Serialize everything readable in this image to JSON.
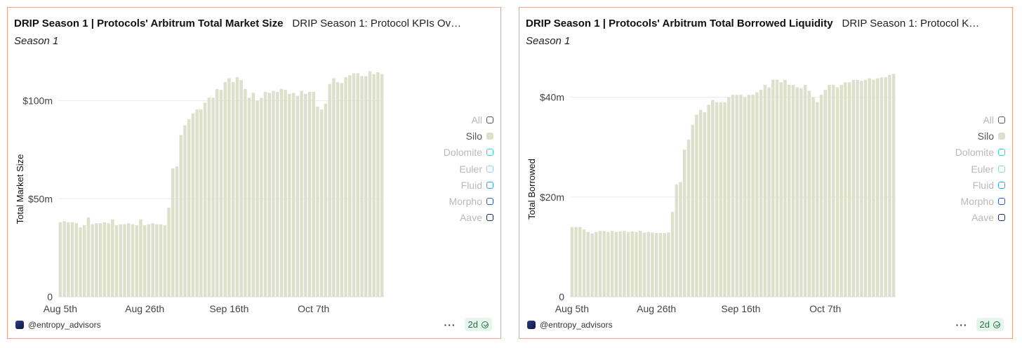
{
  "panels": [
    {
      "title": "DRIP Season 1 | Protocols' Arbitrum Total Market Size",
      "subtitle": "DRIP Season 1: Protocol KPIs Ov…",
      "season": "Season 1",
      "legend": [
        {
          "label": "All",
          "color": "#555555",
          "active": false
        },
        {
          "label": "Silo",
          "color": "#dde0cb",
          "active": true
        },
        {
          "label": "Dolomite",
          "color": "#2fd6c8",
          "active": false
        },
        {
          "label": "Euler",
          "color": "#8fd0ee",
          "active": false
        },
        {
          "label": "Fluid",
          "color": "#2aa7e0",
          "active": false
        },
        {
          "label": "Morpho",
          "color": "#2a57c8",
          "active": false
        },
        {
          "label": "Aave",
          "color": "#1e2a5a",
          "active": false
        }
      ],
      "footer": {
        "handle": "@entropy_advisors",
        "menu": "···",
        "badge": "2d"
      }
    },
    {
      "title": "DRIP Season 1 | Protocols' Arbitrum Total Borrowed Liquidity",
      "subtitle": "DRIP Season 1: Protocol K…",
      "season": "Season 1",
      "legend": [
        {
          "label": "All",
          "color": "#555555",
          "active": false
        },
        {
          "label": "Silo",
          "color": "#dde0cb",
          "active": true
        },
        {
          "label": "Dolomite",
          "color": "#2fd6c8",
          "active": false
        },
        {
          "label": "Euler",
          "color": "#8fd0ee",
          "active": false
        },
        {
          "label": "Fluid",
          "color": "#2aa7e0",
          "active": false
        },
        {
          "label": "Morpho",
          "color": "#2a57c8",
          "active": false
        },
        {
          "label": "Aave",
          "color": "#1e2a5a",
          "active": false
        }
      ],
      "footer": {
        "handle": "@entropy_advisors",
        "menu": "···",
        "badge": "2d"
      }
    }
  ],
  "chart_data": [
    {
      "type": "bar",
      "title": "DRIP Season 1 | Protocols' Arbitrum Total Market Size",
      "ylabel": "Total Market Size",
      "series": [
        {
          "name": "Silo",
          "color": "#dde0cb",
          "values": [
            38,
            38.5,
            38,
            38,
            37.5,
            35.5,
            36.5,
            40.5,
            37,
            37.5,
            37.5,
            38,
            37.5,
            39.5,
            36.5,
            37,
            37,
            37.5,
            37,
            36.5,
            39.5,
            36.5,
            37,
            37.5,
            37,
            37,
            36.5,
            45.5,
            65.5,
            66.5,
            82.5,
            87.5,
            90.5,
            93.5,
            95.5,
            95.5,
            99,
            101.5,
            101.5,
            106,
            105.5,
            109.5,
            111.5,
            109.5,
            112,
            110.5,
            106,
            101.5,
            104,
            100,
            101.5,
            104.5,
            104,
            105,
            104.5,
            106,
            105.5,
            103.5,
            104,
            102.5,
            105,
            103.5,
            104.5,
            104.5,
            97,
            95.5,
            98.5,
            108.5,
            111.5,
            109.5,
            109,
            112,
            113,
            114,
            114,
            112.5,
            112.5,
            115,
            113.5,
            114.5,
            113.5
          ]
        }
      ],
      "x_ticks": [
        "Aug 5th",
        "Aug 26th",
        "Sep 16th",
        "Oct 7th"
      ],
      "x_tick_index": [
        0,
        21,
        42,
        63
      ],
      "y_ticks": [
        0,
        50,
        100
      ],
      "y_tick_labels": [
        "0",
        "$50m",
        "$100m"
      ],
      "ylim": [
        0,
        117
      ],
      "grid": true,
      "legend_position": "right"
    },
    {
      "type": "bar",
      "title": "DRIP Season 1 | Protocols' Arbitrum Total Borrowed Liquidity",
      "ylabel": "Total Borrowed",
      "series": [
        {
          "name": "Silo",
          "color": "#dde0cb",
          "values": [
            14,
            14,
            14,
            13.5,
            13,
            12.7,
            13,
            13.2,
            13.2,
            13,
            13.2,
            13,
            13.1,
            13.2,
            13,
            13.1,
            13,
            13.2,
            12.9,
            13,
            12.9,
            12.8,
            12.8,
            12.8,
            12.9,
            17,
            22.5,
            23,
            29.5,
            31.5,
            34.5,
            36.5,
            37.5,
            37,
            38.5,
            39.5,
            39,
            39,
            39,
            40,
            40.5,
            40.5,
            40.5,
            40,
            40.5,
            40.5,
            41,
            41.5,
            42.5,
            42,
            43.5,
            43.5,
            43,
            43.5,
            42.5,
            42.5,
            42,
            41.8,
            42.5,
            41.3,
            40,
            39,
            40.5,
            41.5,
            42.5,
            42.5,
            42,
            42.5,
            43,
            43,
            43.5,
            43.5,
            43.3,
            43.5,
            43.8,
            43.5,
            43.8,
            44,
            44,
            44.5,
            44.7
          ]
        }
      ],
      "x_ticks": [
        "Aug 5th",
        "Aug 26th",
        "Sep 16th",
        "Oct 7th"
      ],
      "x_tick_index": [
        0,
        21,
        42,
        63
      ],
      "y_ticks": [
        0,
        20,
        40
      ],
      "y_tick_labels": [
        "0",
        "$20m",
        "$40m"
      ],
      "ylim": [
        0,
        46
      ],
      "grid": true,
      "legend_position": "right"
    }
  ]
}
